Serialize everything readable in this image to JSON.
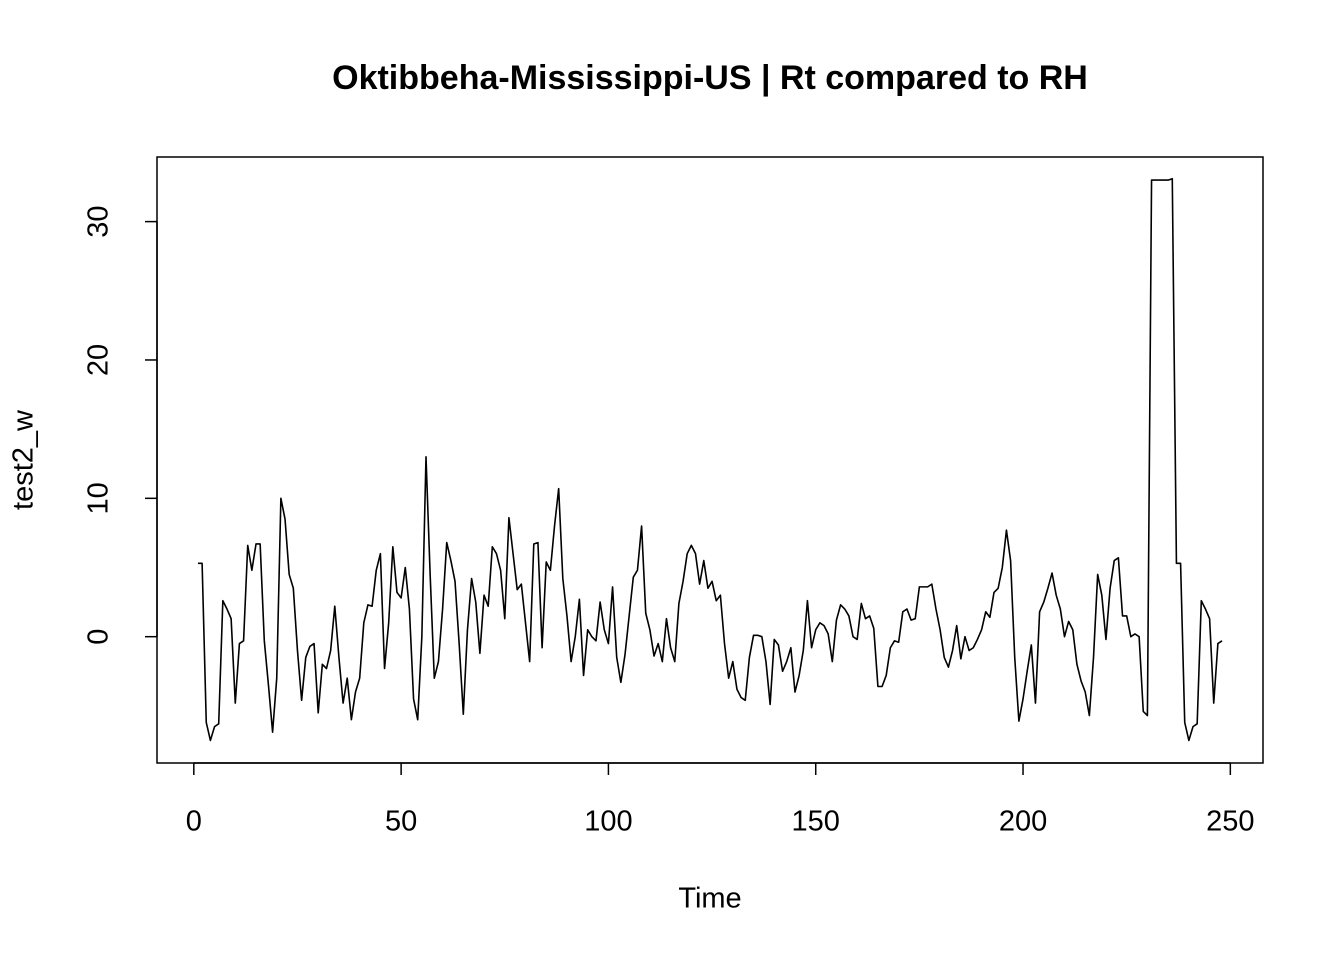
{
  "chart_data": {
    "type": "line",
    "title": "Oktibbeha-Mississippi-US | Rt compared to RH",
    "xlabel": "Time",
    "ylabel": "test2_w",
    "x": [
      1,
      2,
      3,
      4,
      5,
      6,
      7,
      8,
      9,
      10,
      11,
      12,
      13,
      14,
      15,
      16,
      17,
      18,
      19,
      20,
      21,
      22,
      23,
      24,
      25,
      26,
      27,
      28,
      29,
      30,
      31,
      32,
      33,
      34,
      35,
      36,
      37,
      38,
      39,
      40,
      41,
      42,
      43,
      44,
      45,
      46,
      47,
      48,
      49,
      50,
      51,
      52,
      53,
      54,
      55,
      56,
      57,
      58,
      59,
      60,
      61,
      62,
      63,
      64,
      65,
      66,
      67,
      68,
      69,
      70,
      71,
      72,
      73,
      74,
      75,
      76,
      77,
      78,
      79,
      80,
      81,
      82,
      83,
      84,
      85,
      86,
      87,
      88,
      89,
      90,
      91,
      92,
      93,
      94,
      95,
      96,
      97,
      98,
      99,
      100,
      101,
      102,
      103,
      104,
      105,
      106,
      107,
      108,
      109,
      110,
      111,
      112,
      113,
      114,
      115,
      116,
      117,
      118,
      119,
      120,
      121,
      122,
      123,
      124,
      125,
      126,
      127,
      128,
      129,
      130,
      131,
      132,
      133,
      134,
      135,
      136,
      137,
      138,
      139,
      140,
      141,
      142,
      143,
      144,
      145,
      146,
      147,
      148,
      149,
      150,
      151,
      152,
      153,
      154,
      155,
      156,
      157,
      158,
      159,
      160,
      161,
      162,
      163,
      164,
      165,
      166,
      167,
      168,
      169,
      170,
      171,
      172,
      173,
      174,
      175,
      176,
      177,
      178,
      179,
      180,
      181,
      182,
      183,
      184,
      185,
      186,
      187,
      188,
      189,
      190,
      191,
      192,
      193,
      194,
      195,
      196,
      197,
      198,
      199,
      200,
      201,
      202,
      203,
      204,
      205,
      206,
      207,
      208,
      209,
      210,
      211,
      212,
      213,
      214,
      215,
      216,
      217,
      218,
      219,
      220,
      221,
      222,
      223,
      224,
      225,
      226,
      227,
      228,
      229,
      230,
      231,
      232,
      233,
      234,
      235,
      236,
      237,
      238,
      239,
      240,
      241,
      242,
      243,
      244,
      245,
      246,
      247,
      248
    ],
    "series": [
      {
        "name": "test2_w",
        "color": "#000000",
        "values": [
          5.3,
          5.3,
          -6.2,
          -7.5,
          -6.5,
          -6.3,
          2.6,
          2.0,
          1.3,
          -4.8,
          -0.5,
          -0.3,
          6.6,
          4.8,
          6.7,
          6.7,
          -0.3,
          -3.5,
          -6.9,
          -3,
          10,
          8.5,
          4.5,
          3.5,
          -1,
          -4.6,
          -1.5,
          -0.7,
          -0.5,
          -5.5,
          -2,
          -2.3,
          -1,
          2.2,
          -1.5,
          -4.8,
          -3,
          -6,
          -4,
          -3,
          1,
          2.3,
          2.2,
          4.8,
          6,
          -2.3,
          1,
          6.5,
          3.2,
          2.8,
          5,
          2,
          -4.5,
          -6,
          0,
          13,
          4.5,
          -3,
          -1.8,
          2,
          6.8,
          5.5,
          4,
          -0.5,
          -5.6,
          0.5,
          4.2,
          2.5,
          -1.2,
          3,
          2.2,
          6.5,
          6,
          4.8,
          1.3,
          8.6,
          6,
          3.4,
          3.8,
          1,
          -1.8,
          6.7,
          6.8,
          -0.8,
          5.4,
          4.8,
          8,
          10.7,
          4.2,
          1.5,
          -1.8,
          0,
          2.7,
          -2.8,
          0.5,
          0,
          -0.3,
          2.5,
          0.5,
          -0.5,
          3.6,
          -1.5,
          -3.3,
          -1.3,
          1.5,
          4.3,
          4.8,
          8,
          1.7,
          0.5,
          -1.4,
          -0.5,
          -1.8,
          1.3,
          -0.8,
          -1.8,
          2.4,
          4,
          6,
          6.6,
          6,
          3.8,
          5.5,
          3.5,
          4,
          2.6,
          3,
          -0.5,
          -3,
          -1.8,
          -3.8,
          -4.4,
          -4.6,
          -1.5,
          0.1,
          0.1,
          0,
          -1.8,
          -4.9,
          -0.2,
          -0.6,
          -2.5,
          -1.8,
          -0.8,
          -4,
          -2.8,
          -1,
          2.6,
          -0.8,
          0.5,
          1,
          0.8,
          0.2,
          -1.8,
          1.2,
          2.3,
          2,
          1.5,
          0,
          -0.2,
          2.4,
          1.3,
          1.5,
          0.6,
          -3.6,
          -3.6,
          -2.8,
          -0.8,
          -0.3,
          -0.4,
          1.8,
          2,
          1.2,
          1.3,
          3.6,
          3.6,
          3.6,
          3.8,
          2,
          0.5,
          -1.5,
          -2.2,
          -1,
          0.8,
          -1.6,
          0,
          -1,
          -0.8,
          -0.2,
          0.5,
          1.8,
          1.4,
          3.2,
          3.5,
          5,
          7.7,
          5.5,
          -1.5,
          -6.1,
          -4.5,
          -2.5,
          -0.6,
          -4.8,
          1.8,
          2.5,
          3.5,
          4.6,
          3,
          2,
          0,
          1.1,
          0.5,
          -2,
          -3.2,
          -4,
          -5.7,
          -1.5,
          4.5,
          3,
          -0.2,
          3.5,
          5.5,
          5.7,
          1.5,
          1.5,
          0,
          0.2,
          0,
          -5.4,
          -5.7,
          33,
          33,
          33,
          33,
          33,
          33.1,
          5.3,
          5.3,
          -6.2,
          -7.5,
          -6.5,
          -6.3,
          2.6,
          2,
          1.3,
          -4.8,
          -0.5,
          -0.3
        ]
      }
    ],
    "xlim": [
      -8.88,
      257.88
    ],
    "xticks": [
      0,
      50,
      100,
      150,
      200,
      250
    ],
    "ylim": [
      -9.13,
      34.67
    ],
    "yticks": [
      0,
      10,
      20,
      30
    ]
  }
}
